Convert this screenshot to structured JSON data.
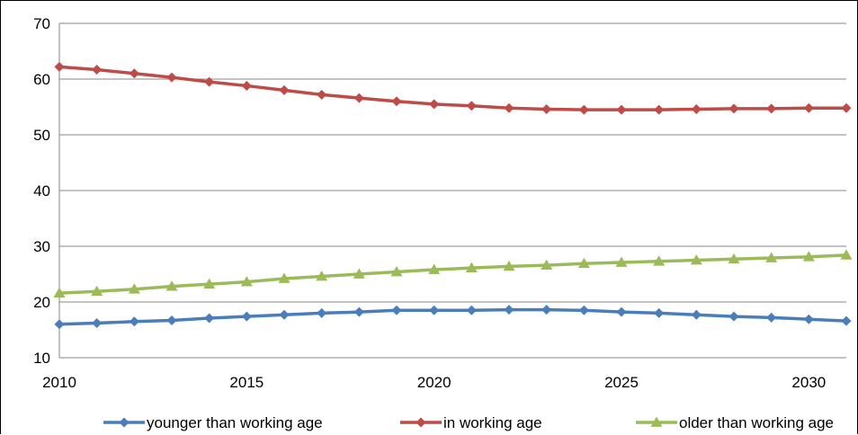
{
  "chart_data": {
    "type": "line",
    "title": "",
    "xlabel": "",
    "ylabel": "",
    "xlim": [
      2010,
      2031
    ],
    "ylim": [
      10,
      70
    ],
    "x_ticks": [
      "2010",
      "2015",
      "2020",
      "2025",
      "2030"
    ],
    "y_ticks": [
      "10",
      "20",
      "30",
      "40",
      "50",
      "60",
      "70"
    ],
    "grid": "horizontal",
    "legend_position": "bottom",
    "x": [
      2010,
      2011,
      2012,
      2013,
      2014,
      2015,
      2016,
      2017,
      2018,
      2019,
      2020,
      2021,
      2022,
      2023,
      2024,
      2025,
      2026,
      2027,
      2028,
      2029,
      2030,
      2031
    ],
    "series": [
      {
        "name": "younger than working age",
        "color": "#4a7ebb",
        "marker": "diamond",
        "values": [
          16.0,
          16.2,
          16.5,
          16.7,
          17.1,
          17.4,
          17.7,
          18.0,
          18.2,
          18.5,
          18.5,
          18.5,
          18.6,
          18.6,
          18.5,
          18.2,
          18.0,
          17.7,
          17.4,
          17.2,
          16.9,
          16.6
        ]
      },
      {
        "name": "in working age",
        "color": "#be4b48",
        "marker": "diamond",
        "values": [
          62.2,
          61.7,
          61.0,
          60.3,
          59.5,
          58.8,
          58.0,
          57.2,
          56.6,
          56.0,
          55.5,
          55.2,
          54.8,
          54.6,
          54.5,
          54.5,
          54.5,
          54.6,
          54.7,
          54.7,
          54.8,
          54.8
        ]
      },
      {
        "name": "older than working age",
        "color": "#9bbb59",
        "marker": "triangle",
        "values": [
          21.6,
          21.9,
          22.3,
          22.8,
          23.2,
          23.6,
          24.2,
          24.6,
          25.0,
          25.4,
          25.8,
          26.1,
          26.4,
          26.6,
          26.9,
          27.1,
          27.3,
          27.5,
          27.7,
          27.9,
          28.1,
          28.4
        ]
      }
    ]
  }
}
